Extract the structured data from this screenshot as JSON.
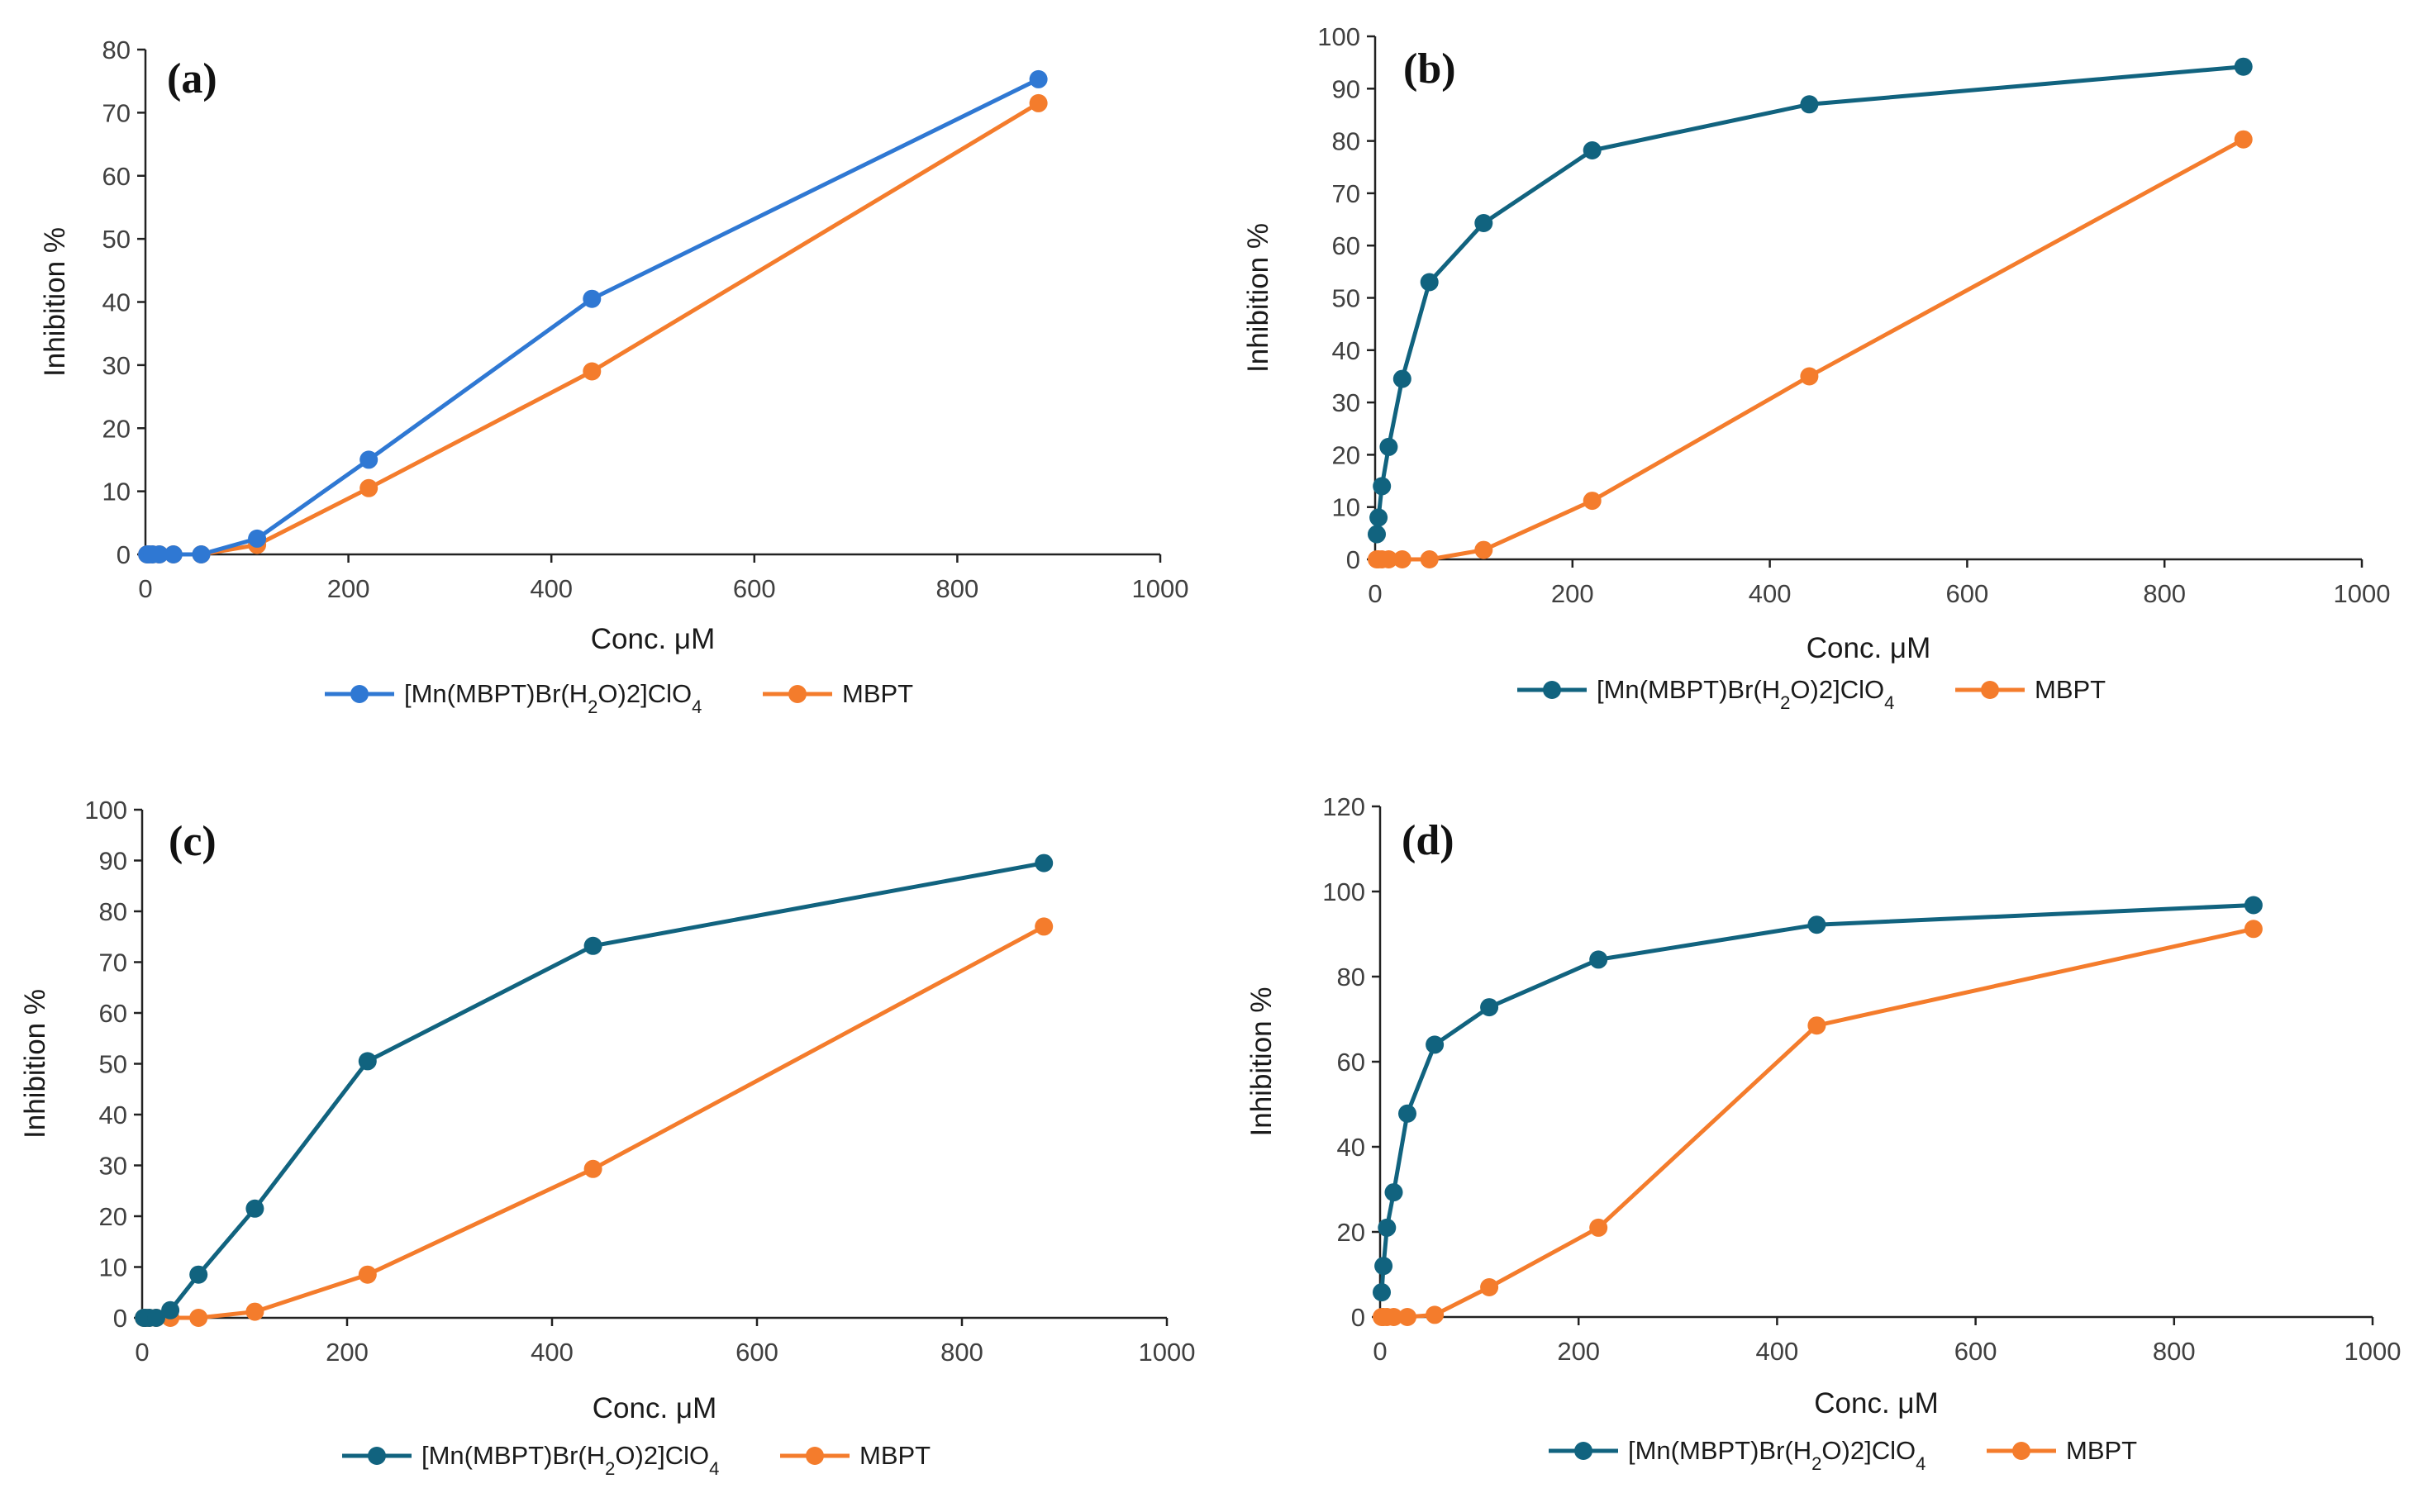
{
  "chart_data": [
    {
      "type": "line",
      "panel_label": "(a)",
      "xlabel": "Conc. μM",
      "ylabel": "Inhibition %",
      "xlim": [
        0,
        1000
      ],
      "ylim": [
        0,
        80
      ],
      "xticks": [
        0,
        200,
        400,
        600,
        800,
        1000
      ],
      "yticks": [
        0,
        10,
        20,
        30,
        40,
        50,
        60,
        70,
        80
      ],
      "x_tick_labels": [
        "0",
        "200",
        "400",
        "600",
        "800",
        "1000"
      ],
      "y_tick_labels": [
        "0",
        "10",
        "20",
        "30",
        "40",
        "50",
        "60",
        "70",
        "80"
      ],
      "legend_position": "bottom",
      "series": [
        {
          "name": "[Mn(MBPT)Br(H2O)2]ClO4",
          "color": "#2f78d3",
          "x": [
            1.7,
            3.4,
            6.9,
            13.7,
            27.5,
            55,
            110,
            220,
            440,
            880
          ],
          "y": [
            0,
            0,
            0,
            0,
            0,
            0,
            2.5,
            15,
            40.5,
            75.3
          ]
        },
        {
          "name": "MBPT",
          "color": "#f47c2c",
          "x": [
            1.7,
            3.4,
            6.9,
            13.7,
            27.5,
            55,
            110,
            220,
            440,
            880
          ],
          "y": [
            0,
            0,
            0,
            0,
            0,
            0,
            1.5,
            10.5,
            29,
            71.5
          ]
        }
      ]
    },
    {
      "type": "line",
      "panel_label": "(b)",
      "xlabel": "Conc. μM",
      "ylabel": "Inhibition %",
      "xlim": [
        0,
        1000
      ],
      "ylim": [
        0,
        100
      ],
      "xticks": [
        0,
        200,
        400,
        600,
        800,
        1000
      ],
      "yticks": [
        0,
        10,
        20,
        30,
        40,
        50,
        60,
        70,
        80,
        90,
        100
      ],
      "x_tick_labels": [
        "0",
        "200",
        "400",
        "600",
        "800",
        "1000"
      ],
      "y_tick_labels": [
        "0",
        "10",
        "20",
        "30",
        "40",
        "50",
        "60",
        "70",
        "80",
        "90",
        "100"
      ],
      "legend_position": "bottom",
      "series": [
        {
          "name": "[Mn(MBPT)Br(H2O)2]ClO4",
          "color": "#11637f",
          "x": [
            1.7,
            3.4,
            6.9,
            13.7,
            27.5,
            55,
            110,
            220,
            440,
            880
          ],
          "y": [
            4.8,
            8,
            14,
            21.5,
            34.5,
            53,
            64.3,
            78.2,
            87,
            94.2
          ]
        },
        {
          "name": "MBPT",
          "color": "#f47c2c",
          "x": [
            1.7,
            3.4,
            6.9,
            13.7,
            27.5,
            55,
            110,
            220,
            440,
            880
          ],
          "y": [
            0,
            0,
            0,
            0,
            0,
            0,
            1.8,
            11.2,
            35,
            80.3
          ]
        }
      ]
    },
    {
      "type": "line",
      "panel_label": "(c)",
      "xlabel": "Conc. μM",
      "ylabel": "Inhibition %",
      "xlim": [
        0,
        1000
      ],
      "ylim": [
        0,
        100
      ],
      "xticks": [
        0,
        200,
        400,
        600,
        800,
        1000
      ],
      "yticks": [
        0,
        10,
        20,
        30,
        40,
        50,
        60,
        70,
        80,
        90,
        100
      ],
      "x_tick_labels": [
        "0",
        "200",
        "400",
        "600",
        "800",
        "1000"
      ],
      "y_tick_labels": [
        "0",
        "10",
        "20",
        "30",
        "40",
        "50",
        "60",
        "70",
        "80",
        "90",
        "100"
      ],
      "legend_position": "bottom",
      "series": [
        {
          "name": "[Mn(MBPT)Br(H2O)2]ClO4",
          "color": "#11637f",
          "x": [
            1.7,
            3.4,
            6.9,
            13.7,
            27.5,
            55,
            110,
            220,
            440,
            880
          ],
          "y": [
            0,
            0,
            0,
            0,
            1.5,
            8.5,
            21.5,
            50.5,
            73.2,
            89.5
          ]
        },
        {
          "name": "MBPT",
          "color": "#f47c2c",
          "x": [
            1.7,
            3.4,
            6.9,
            13.7,
            27.5,
            55,
            110,
            220,
            440,
            880
          ],
          "y": [
            0,
            0,
            0,
            0,
            0,
            0,
            1.2,
            8.5,
            29.3,
            77
          ]
        }
      ]
    },
    {
      "type": "line",
      "panel_label": "(d)",
      "xlabel": "Conc. μM",
      "ylabel": "Inhibition %",
      "xlim": [
        0,
        1000
      ],
      "ylim": [
        0,
        120
      ],
      "xticks": [
        0,
        200,
        400,
        600,
        800,
        1000
      ],
      "yticks": [
        0,
        20,
        40,
        60,
        80,
        100,
        120
      ],
      "x_tick_labels": [
        "0",
        "200",
        "400",
        "600",
        "800",
        "1000"
      ],
      "y_tick_labels": [
        "0",
        "20",
        "40",
        "60",
        "80",
        "100",
        "120"
      ],
      "legend_position": "bottom",
      "series": [
        {
          "name": "[Mn(MBPT)Br(H2O)2]ClO4",
          "color": "#11637f",
          "x": [
            1.7,
            3.4,
            6.9,
            13.7,
            27.5,
            55,
            110,
            220,
            440,
            880
          ],
          "y": [
            5.8,
            12,
            21,
            29.3,
            47.8,
            64,
            72.8,
            84,
            92.2,
            96.8
          ]
        },
        {
          "name": "MBPT",
          "color": "#f47c2c",
          "x": [
            1.7,
            3.4,
            6.9,
            13.7,
            27.5,
            55,
            110,
            220,
            440,
            880
          ],
          "y": [
            0,
            0,
            0,
            0,
            0,
            0.5,
            7,
            21,
            68.5,
            91.2
          ]
        }
      ]
    }
  ]
}
